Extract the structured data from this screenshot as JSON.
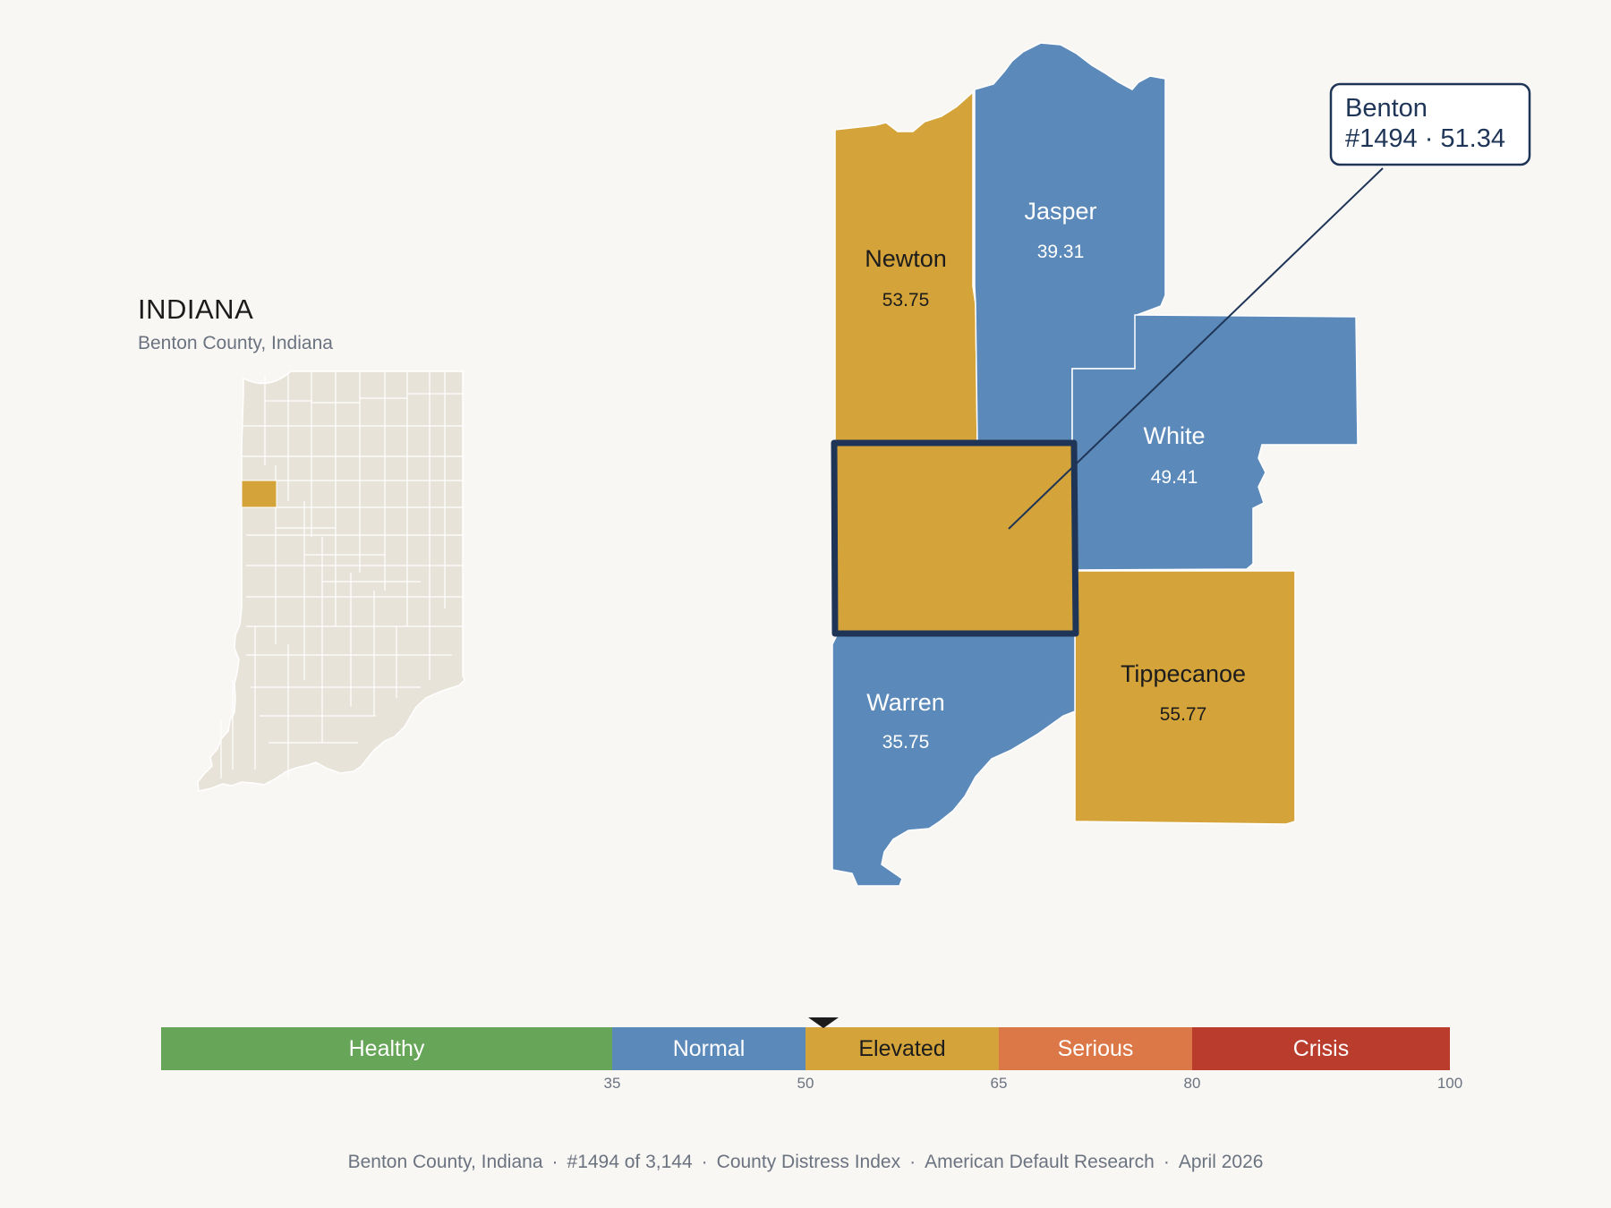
{
  "inset": {
    "title": "INDIANA",
    "subtitle": "Benton County, Indiana",
    "highlight_county": "Benton"
  },
  "colors": {
    "background": "#f9f7f4",
    "state_fill": "#e8e3d8",
    "elevated": "#d4a43a",
    "normal": "#5b89b9",
    "healthy": "#67a659",
    "serious": "#dc7848",
    "crisis": "#b93c2d",
    "outline": "#1f3557"
  },
  "counties": [
    {
      "name": "Newton",
      "value": "53.75",
      "category": "Elevated"
    },
    {
      "name": "Jasper",
      "value": "39.31",
      "category": "Normal"
    },
    {
      "name": "White",
      "value": "49.41",
      "category": "Normal"
    },
    {
      "name": "Warren",
      "value": "35.75",
      "category": "Normal"
    },
    {
      "name": "Tippecanoe",
      "value": "55.77",
      "category": "Elevated"
    },
    {
      "name": "Benton",
      "value": "51.34",
      "category": "Elevated",
      "selected": true
    }
  ],
  "callout": {
    "county": "Benton",
    "line1": "Benton",
    "line2": "#1494 · 51.34"
  },
  "legend": {
    "segments": [
      {
        "label": "Healthy",
        "from": 0,
        "to": 35
      },
      {
        "label": "Normal",
        "from": 35,
        "to": 50
      },
      {
        "label": "Elevated",
        "from": 50,
        "to": 65
      },
      {
        "label": "Serious",
        "from": 65,
        "to": 80
      },
      {
        "label": "Crisis",
        "from": 80,
        "to": 100
      }
    ],
    "ticks": [
      "35",
      "50",
      "65",
      "80",
      "100"
    ],
    "marker_value": 51.34
  },
  "footer": {
    "items": [
      "Benton County, Indiana",
      "#1494 of 3,144",
      "County Distress Index",
      "American Default Research",
      "April 2026"
    ],
    "separator": "·"
  }
}
